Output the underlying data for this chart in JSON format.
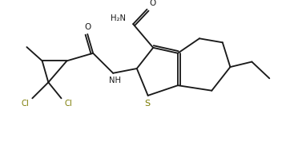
{
  "bg_color": "#ffffff",
  "line_color": "#1a1a1a",
  "cl_color": "#7a7a00",
  "s_color": "#7a7a00",
  "figsize": [
    3.67,
    1.87
  ],
  "dpi": 100,
  "xlim": [
    0,
    9.5
  ],
  "ylim": [
    0,
    4.7
  ]
}
